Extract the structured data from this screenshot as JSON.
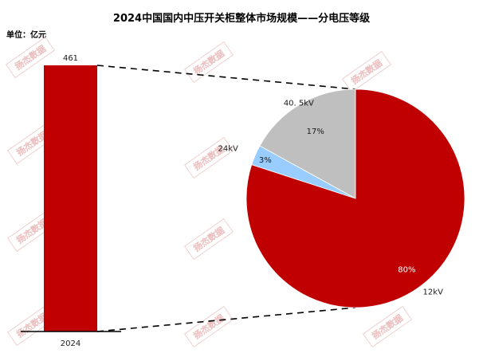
{
  "title": "2024中国国内中压开关柜整体市场规模——分电压等级",
  "unit_label": "单位：亿元",
  "watermark": "扬杰数据",
  "colors": {
    "bar": "#c00000",
    "slice_12kv": "#c00000",
    "slice_24kv": "#99ccff",
    "slice_40_5kv": "#bfbfbf"
  },
  "chart_data": [
    {
      "type": "bar",
      "categories": [
        "2024"
      ],
      "values": [
        461
      ],
      "data_labels": [
        "461"
      ]
    },
    {
      "type": "pie",
      "slices": [
        {
          "name": "12kV",
          "value": 80,
          "label": "80%"
        },
        {
          "name": "24kV",
          "value": 3,
          "label": "3%"
        },
        {
          "name": "40. 5kV",
          "value": 17,
          "label": "17%"
        }
      ]
    }
  ]
}
